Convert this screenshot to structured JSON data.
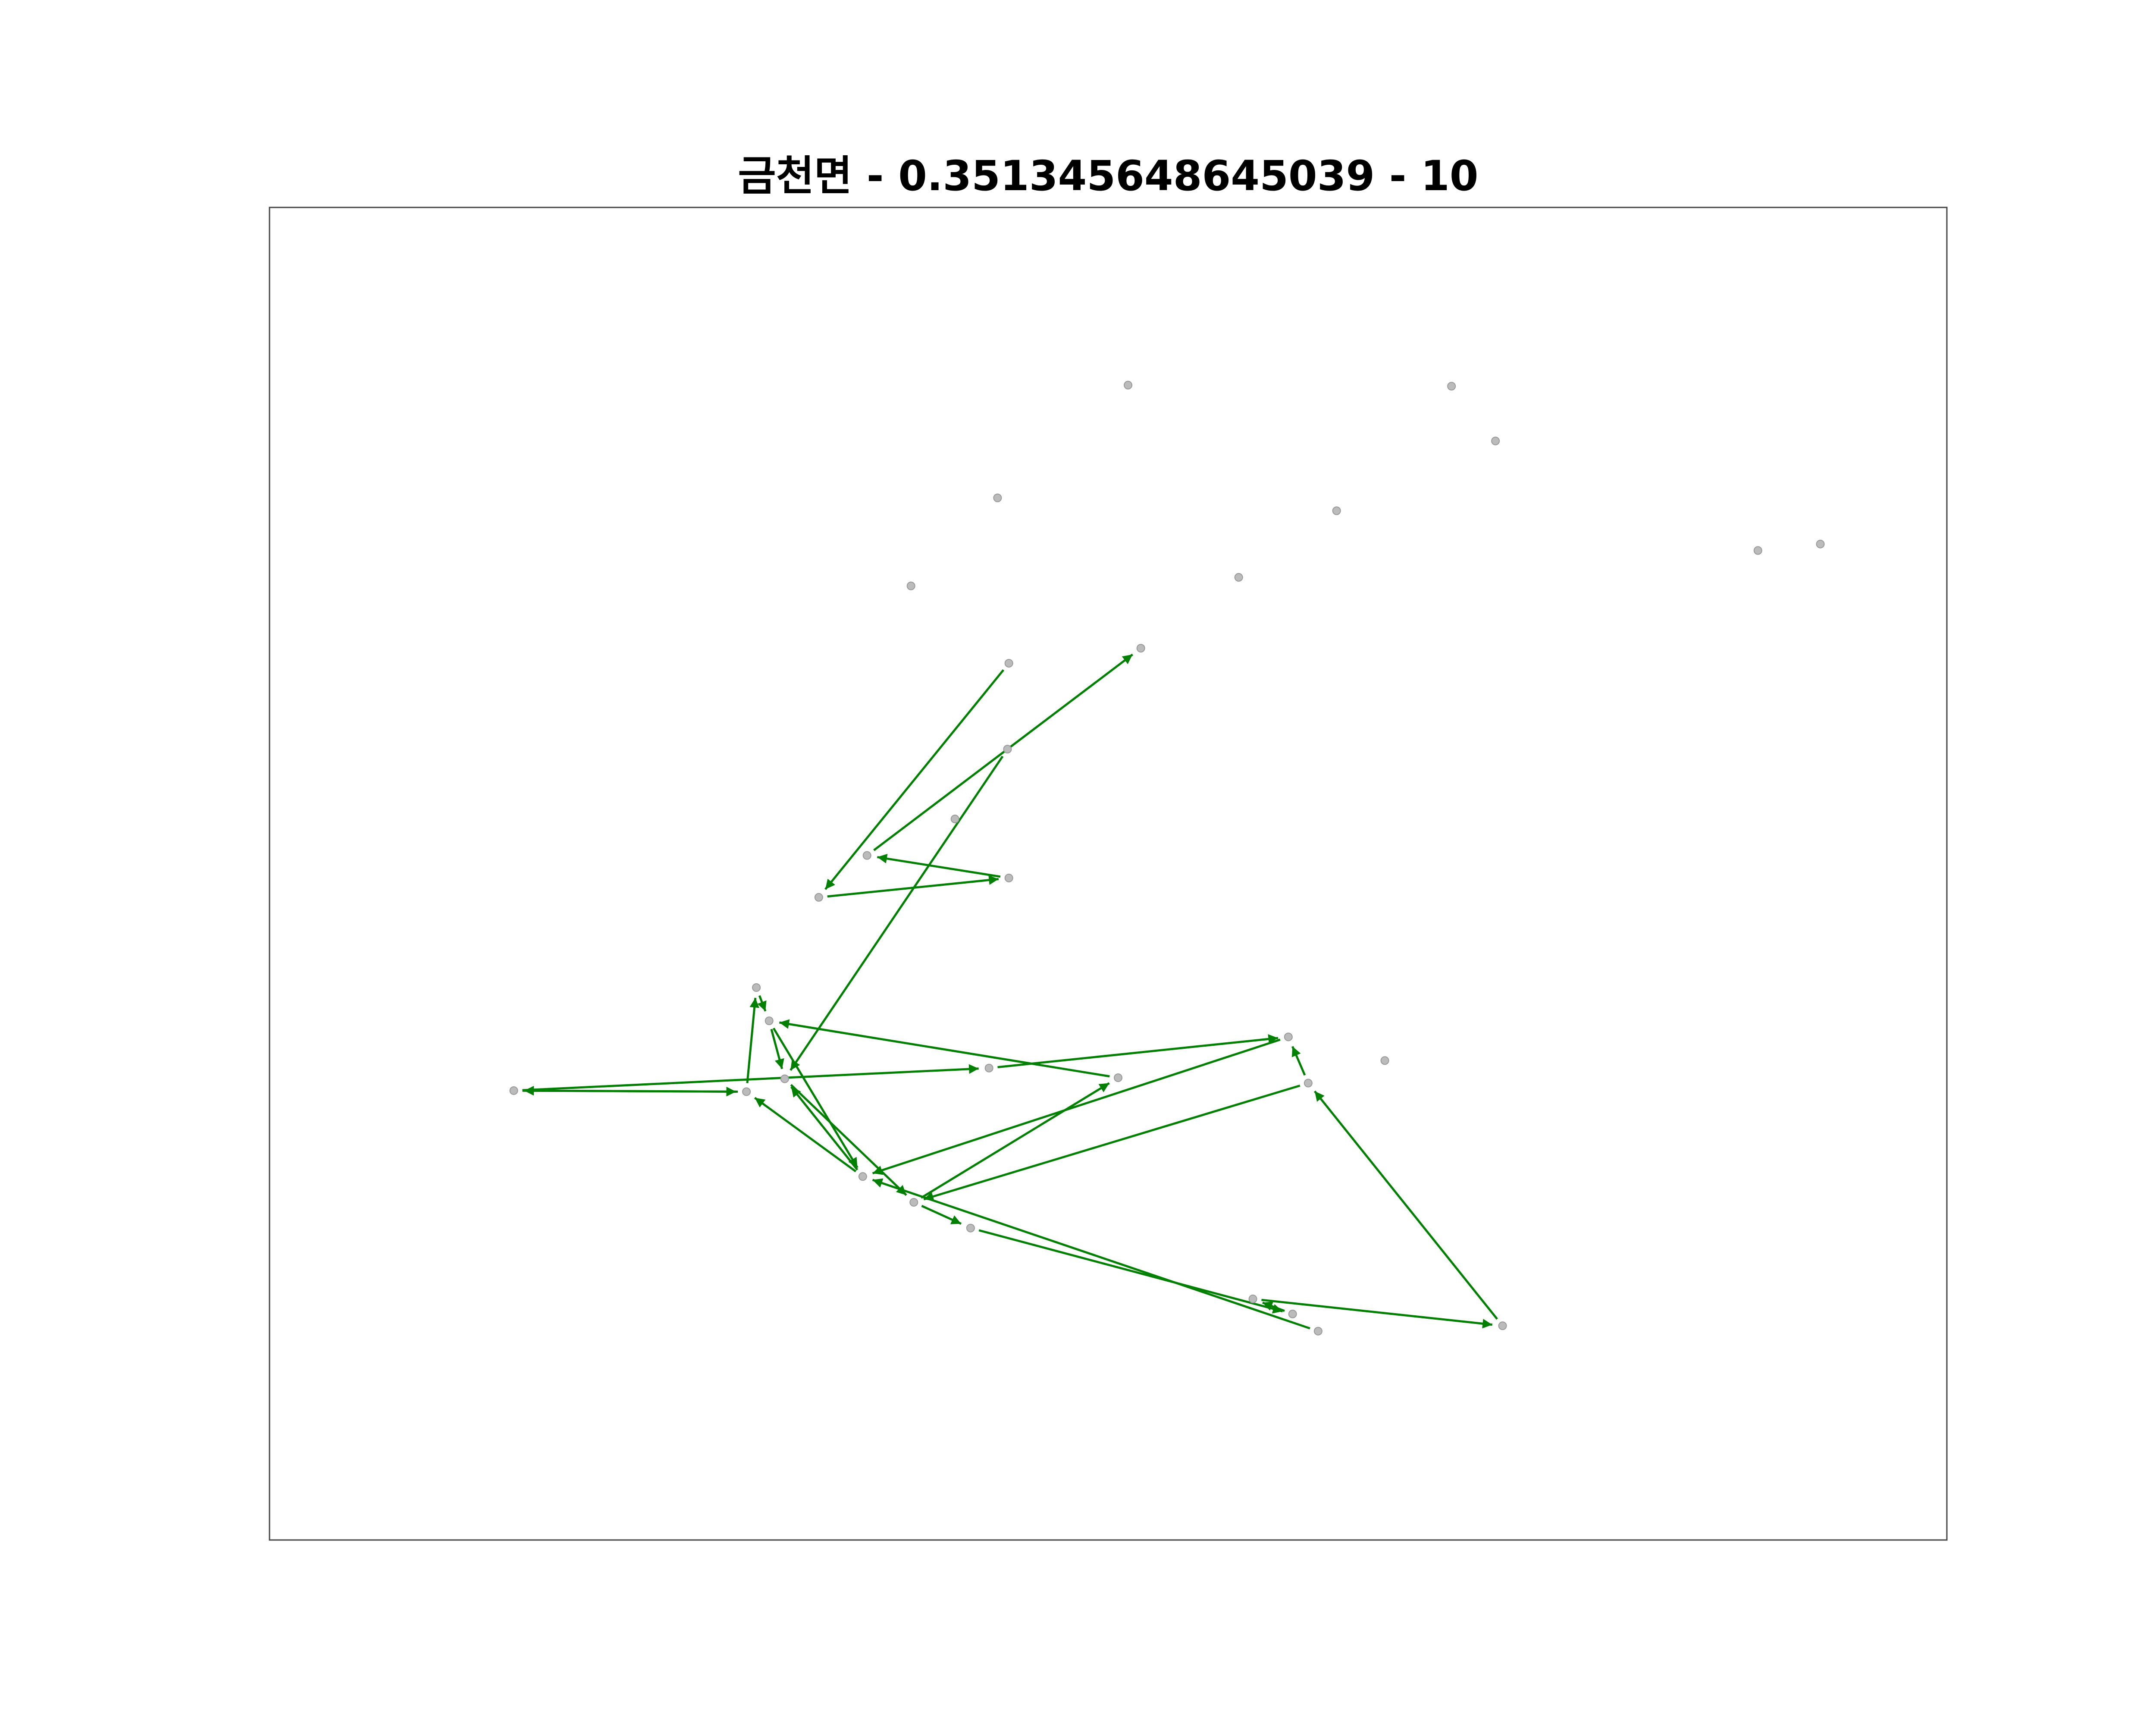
{
  "chart_data": {
    "type": "scatter",
    "title": "금천면 - 0.351345648645039 - 10",
    "xlabel": "",
    "ylabel": "",
    "axes_visible": false,
    "grid": false,
    "xlim": [
      0,
      1000
    ],
    "ylim": [
      0,
      1000
    ],
    "colors": {
      "point": "#bbbbbb",
      "point_edge": "#999999",
      "arrow": "#008000",
      "frame": "#444444"
    },
    "points": [
      {
        "id": "p1",
        "x": 81,
        "y": 702
      },
      {
        "id": "p2",
        "x": 245,
        "y": 703
      },
      {
        "id": "p3",
        "x": 272,
        "y": 691
      },
      {
        "id": "p4",
        "x": 261,
        "y": 637
      },
      {
        "id": "p5",
        "x": 252,
        "y": 606
      },
      {
        "id": "p6",
        "x": 327,
        "y": 782
      },
      {
        "id": "p7",
        "x": 363,
        "y": 806
      },
      {
        "id": "p8",
        "x": 403,
        "y": 830
      },
      {
        "id": "p9",
        "x": 416,
        "y": 681
      },
      {
        "id": "p10",
        "x": 507,
        "y": 690
      },
      {
        "id": "p11",
        "x": 630,
        "y": 910
      },
      {
        "id": "p12",
        "x": 602,
        "y": 896
      },
      {
        "id": "p13",
        "x": 648,
        "y": 926
      },
      {
        "id": "p14",
        "x": 778,
        "y": 921
      },
      {
        "id": "p15",
        "x": 641,
        "y": 695
      },
      {
        "id": "p16",
        "x": 627,
        "y": 652
      },
      {
        "id": "p17",
        "x": 695,
        "y": 674
      },
      {
        "id": "p18",
        "x": 296,
        "y": 522
      },
      {
        "id": "p19",
        "x": 330,
        "y": 483
      },
      {
        "id": "p20",
        "x": 430,
        "y": 504
      },
      {
        "id": "p21",
        "x": 429,
        "y": 384
      },
      {
        "id": "p22",
        "x": 430,
        "y": 304
      },
      {
        "id": "p23",
        "x": 523,
        "y": 290
      },
      {
        "id": "p24",
        "x": 392,
        "y": 449
      },
      {
        "id": "p25",
        "x": 361,
        "y": 232
      },
      {
        "id": "p26",
        "x": 422,
        "y": 150
      },
      {
        "id": "p27",
        "x": 592,
        "y": 224
      },
      {
        "id": "p28",
        "x": 661,
        "y": 162
      },
      {
        "id": "p29",
        "x": 773,
        "y": 97
      },
      {
        "id": "p30",
        "x": 742,
        "y": 46
      },
      {
        "id": "p31",
        "x": 958,
        "y": 199
      },
      {
        "id": "p32",
        "x": 514,
        "y": 45
      },
      {
        "id": "p33",
        "x": 1002,
        "y": 193
      }
    ],
    "arrows": [
      {
        "from": "p2",
        "to": "p1"
      },
      {
        "from": "p1",
        "to": "p2"
      },
      {
        "from": "p1",
        "to": "p9"
      },
      {
        "from": "p9",
        "to": "p16"
      },
      {
        "from": "p16",
        "to": "p6"
      },
      {
        "from": "p6",
        "to": "p3"
      },
      {
        "from": "p3",
        "to": "p7"
      },
      {
        "from": "p7",
        "to": "p10"
      },
      {
        "from": "p10",
        "to": "p4"
      },
      {
        "from": "p4",
        "to": "p3"
      },
      {
        "from": "p5",
        "to": "p4"
      },
      {
        "from": "p2",
        "to": "p5"
      },
      {
        "from": "p4",
        "to": "p6"
      },
      {
        "from": "p6",
        "to": "p2"
      },
      {
        "from": "p7",
        "to": "p8"
      },
      {
        "from": "p8",
        "to": "p11"
      },
      {
        "from": "p11",
        "to": "p12"
      },
      {
        "from": "p12",
        "to": "p14"
      },
      {
        "from": "p14",
        "to": "p15"
      },
      {
        "from": "p15",
        "to": "p16"
      },
      {
        "from": "p15",
        "to": "p7"
      },
      {
        "from": "p13",
        "to": "p6"
      },
      {
        "from": "p18",
        "to": "p20"
      },
      {
        "from": "p20",
        "to": "p19"
      },
      {
        "from": "p22",
        "to": "p18"
      },
      {
        "from": "p19",
        "to": "p23"
      },
      {
        "from": "p21",
        "to": "p3"
      }
    ]
  }
}
